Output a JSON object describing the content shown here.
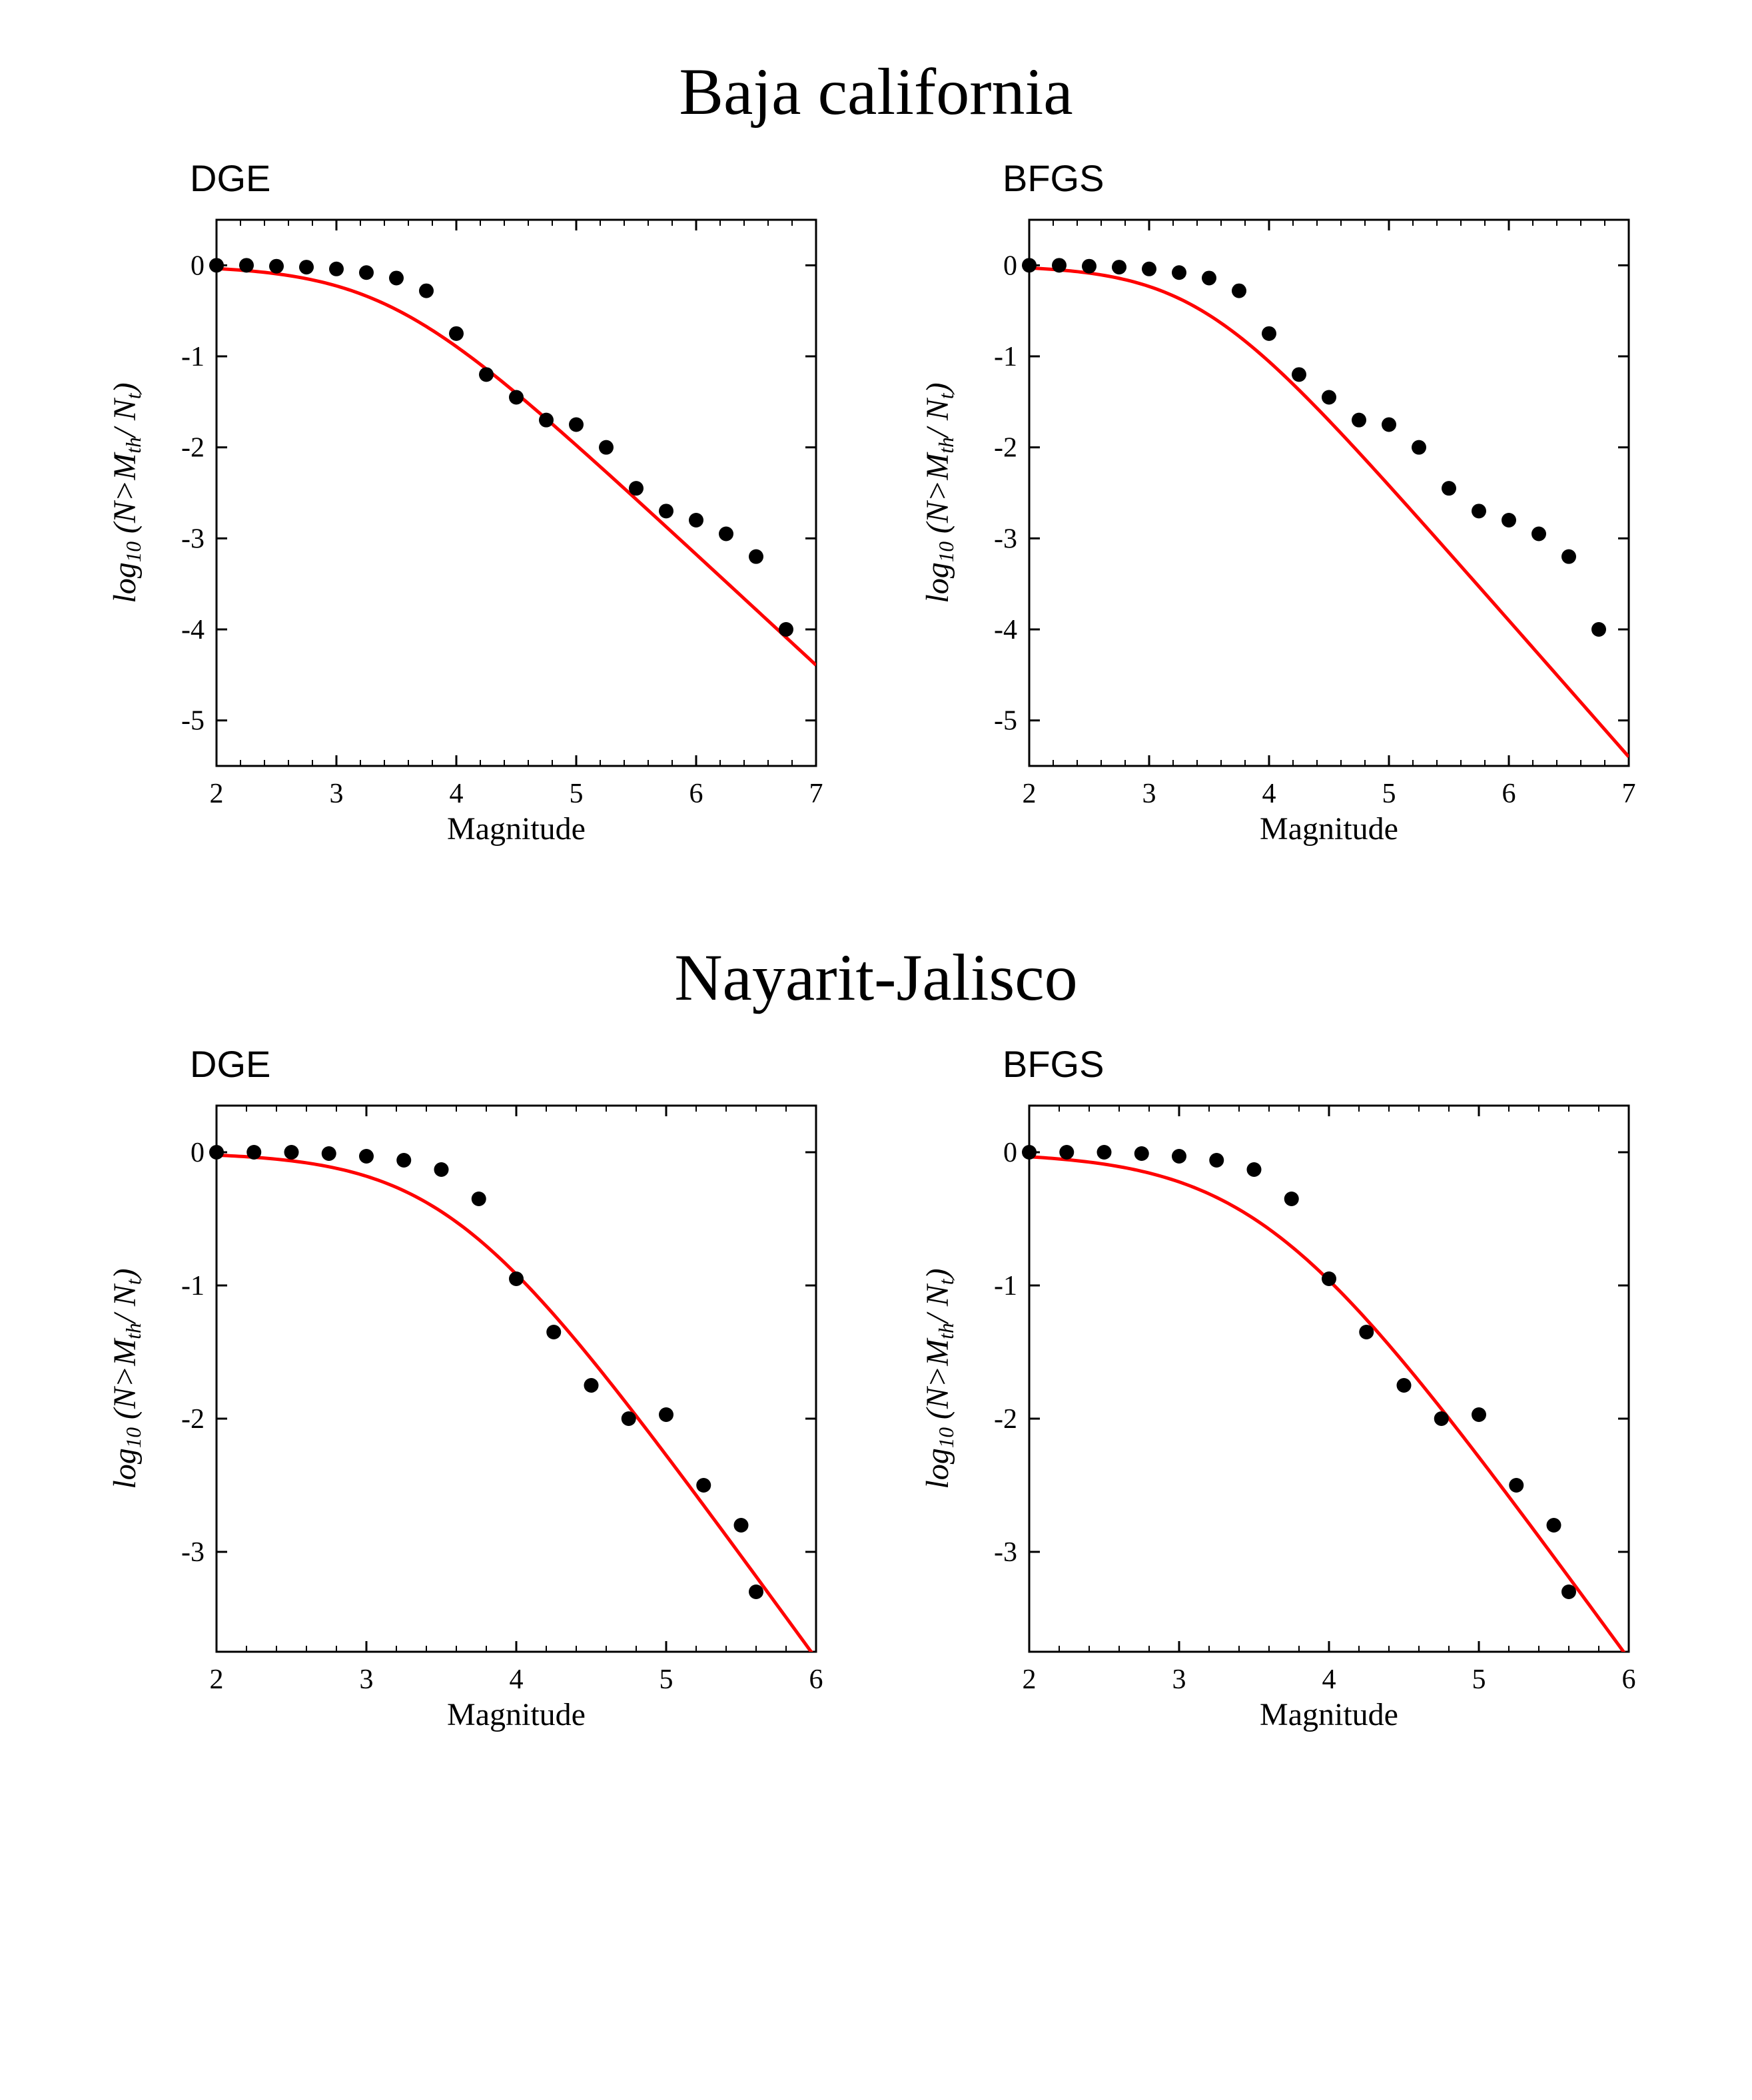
{
  "figure": {
    "background": "#ffffff",
    "axis_color": "#000000",
    "line_color": "#ff0000",
    "marker_color": "#000000",
    "marker_radius": 11,
    "line_width": 5,
    "axis_width": 3,
    "tick_font_size": 42,
    "label_font_size": 48,
    "title_font_size": 100,
    "subtitle_font_size": 56,
    "ylabel": "log₁₀ (N>Mₜₕ/ Nₜ)",
    "xlabel": "Magnitude"
  },
  "regions": [
    {
      "title": "Baja california",
      "panels": [
        {
          "subtitle": "DGE",
          "xlim": [
            2,
            7
          ],
          "ylim": [
            -5.5,
            0.5
          ],
          "xticks": [
            2,
            3,
            4,
            5,
            6,
            7
          ],
          "yticks": [
            0,
            -1,
            -2,
            -3,
            -4,
            -5
          ],
          "minor_x": 5,
          "points": [
            [
              2.0,
              0.0
            ],
            [
              2.25,
              0.0
            ],
            [
              2.5,
              -0.01
            ],
            [
              2.75,
              -0.02
            ],
            [
              3.0,
              -0.04
            ],
            [
              3.25,
              -0.08
            ],
            [
              3.5,
              -0.14
            ],
            [
              3.75,
              -0.28
            ],
            [
              4.0,
              -0.75
            ],
            [
              4.25,
              -1.2
            ],
            [
              4.5,
              -1.45
            ],
            [
              4.75,
              -1.7
            ],
            [
              5.0,
              -1.75
            ],
            [
              5.25,
              -2.0
            ],
            [
              5.5,
              -2.45
            ],
            [
              5.75,
              -2.7
            ],
            [
              6.0,
              -2.8
            ],
            [
              6.25,
              -2.95
            ],
            [
              6.5,
              -3.2
            ],
            [
              6.75,
              -4.0
            ]
          ],
          "curve": {
            "plateau": 0.0,
            "knee": 3.4,
            "width": 0.5,
            "slope": -1.22
          }
        },
        {
          "subtitle": "BFGS",
          "xlim": [
            2,
            7
          ],
          "ylim": [
            -5.5,
            0.5
          ],
          "xticks": [
            2,
            3,
            4,
            5,
            6,
            7
          ],
          "yticks": [
            0,
            -1,
            -2,
            -3,
            -4,
            -5
          ],
          "minor_x": 5,
          "points": [
            [
              2.0,
              0.0
            ],
            [
              2.25,
              0.0
            ],
            [
              2.5,
              -0.01
            ],
            [
              2.75,
              -0.02
            ],
            [
              3.0,
              -0.04
            ],
            [
              3.25,
              -0.08
            ],
            [
              3.5,
              -0.14
            ],
            [
              3.75,
              -0.28
            ],
            [
              4.0,
              -0.75
            ],
            [
              4.25,
              -1.2
            ],
            [
              4.5,
              -1.45
            ],
            [
              4.75,
              -1.7
            ],
            [
              5.0,
              -1.75
            ],
            [
              5.25,
              -2.0
            ],
            [
              5.5,
              -2.45
            ],
            [
              5.75,
              -2.7
            ],
            [
              6.0,
              -2.8
            ],
            [
              6.25,
              -2.95
            ],
            [
              6.5,
              -3.2
            ],
            [
              6.75,
              -4.0
            ]
          ],
          "curve": {
            "plateau": 0.0,
            "knee": 3.4,
            "width": 0.45,
            "slope": -1.5
          }
        }
      ]
    },
    {
      "title": "Nayarit-Jalisco",
      "panels": [
        {
          "subtitle": "DGE",
          "xlim": [
            2,
            6
          ],
          "ylim": [
            -3.75,
            0.35
          ],
          "xticks": [
            2,
            3,
            4,
            5,
            6
          ],
          "yticks": [
            0,
            -1,
            -2,
            -3
          ],
          "minor_x": 5,
          "points": [
            [
              2.0,
              0.0
            ],
            [
              2.25,
              0.0
            ],
            [
              2.5,
              0.0
            ],
            [
              2.75,
              -0.01
            ],
            [
              3.0,
              -0.03
            ],
            [
              3.25,
              -0.06
            ],
            [
              3.5,
              -0.13
            ],
            [
              3.75,
              -0.35
            ],
            [
              4.0,
              -0.95
            ],
            [
              4.25,
              -1.35
            ],
            [
              4.5,
              -1.75
            ],
            [
              4.75,
              -2.0
            ],
            [
              5.0,
              -1.97
            ],
            [
              5.25,
              -2.5
            ],
            [
              5.5,
              -2.8
            ],
            [
              5.6,
              -3.3
            ]
          ],
          "curve": {
            "plateau": 0.0,
            "knee": 3.55,
            "width": 0.45,
            "slope": -1.55
          }
        },
        {
          "subtitle": "BFGS",
          "xlim": [
            2,
            6
          ],
          "ylim": [
            -3.75,
            0.35
          ],
          "xticks": [
            2,
            3,
            4,
            5,
            6
          ],
          "yticks": [
            0,
            -1,
            -2,
            -3
          ],
          "minor_x": 5,
          "points": [
            [
              2.0,
              0.0
            ],
            [
              2.25,
              0.0
            ],
            [
              2.5,
              0.0
            ],
            [
              2.75,
              -0.01
            ],
            [
              3.0,
              -0.03
            ],
            [
              3.25,
              -0.06
            ],
            [
              3.5,
              -0.13
            ],
            [
              3.75,
              -0.35
            ],
            [
              4.0,
              -0.95
            ],
            [
              4.25,
              -1.35
            ],
            [
              4.5,
              -1.75
            ],
            [
              4.75,
              -2.0
            ],
            [
              5.0,
              -1.97
            ],
            [
              5.25,
              -2.5
            ],
            [
              5.5,
              -2.8
            ],
            [
              5.6,
              -3.3
            ]
          ],
          "curve": {
            "plateau": 0.0,
            "knee": 3.55,
            "width": 0.5,
            "slope": -1.55
          }
        }
      ]
    }
  ]
}
